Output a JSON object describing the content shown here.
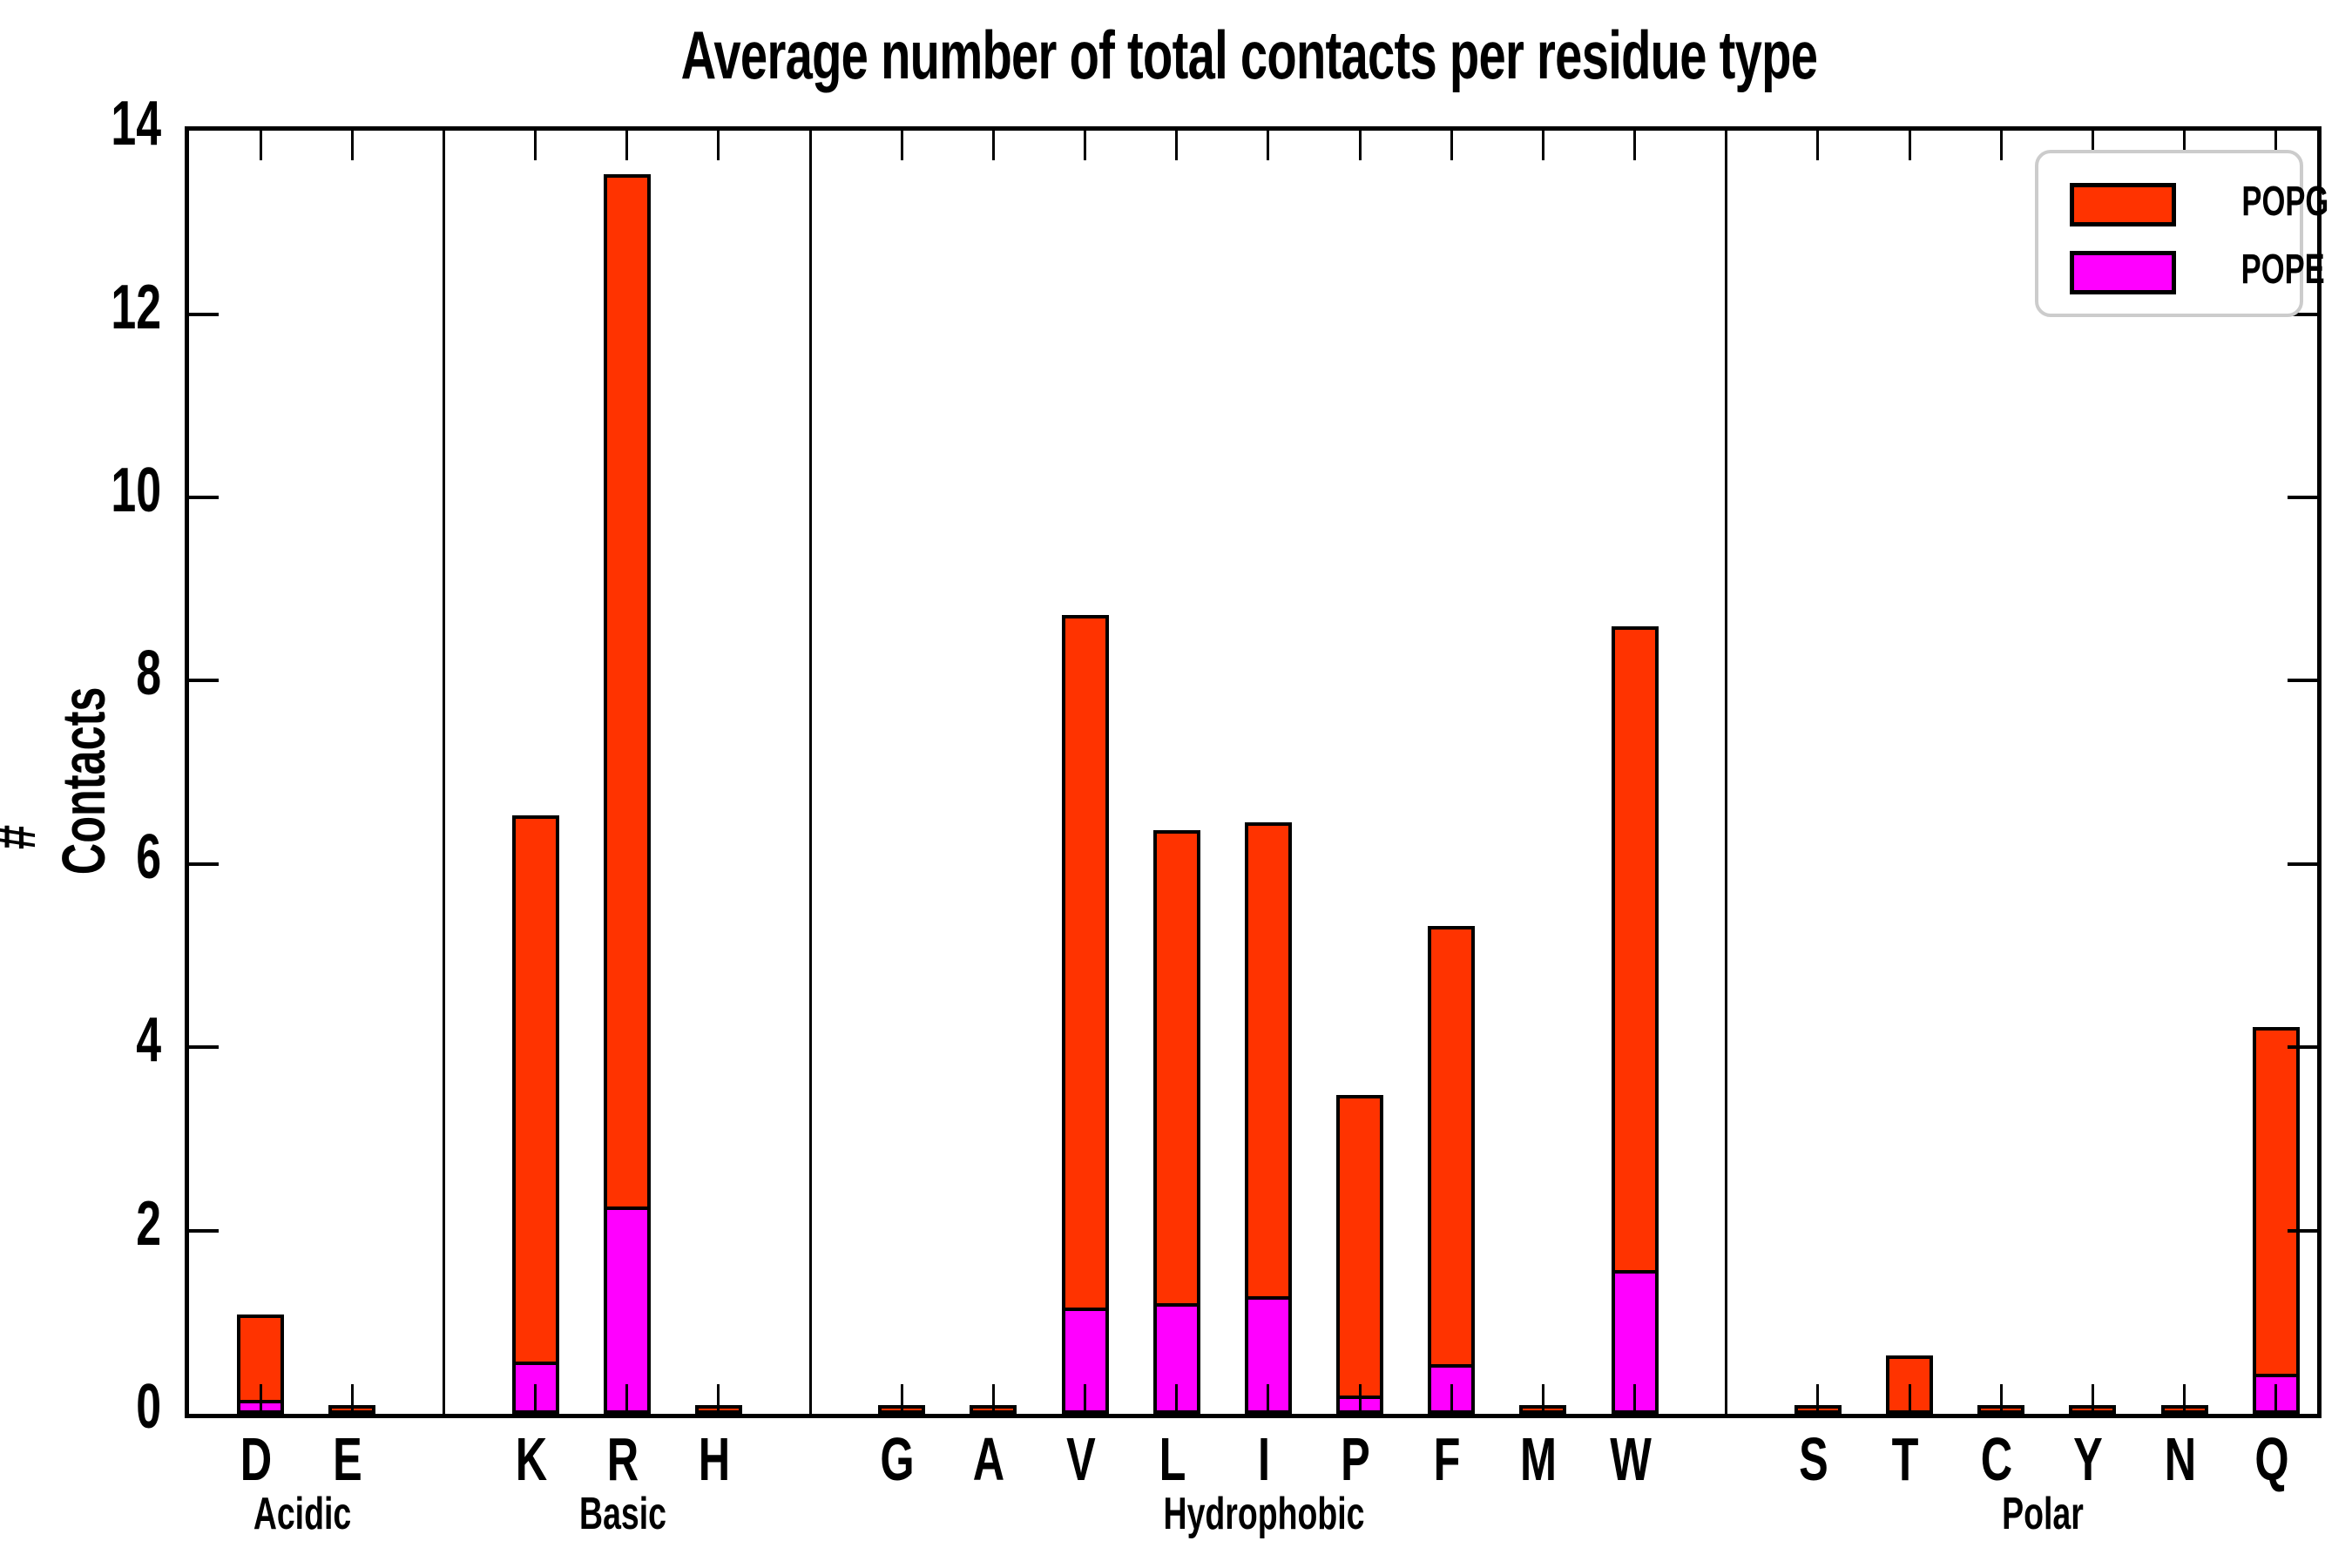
{
  "figure": {
    "title": "Average number of total contacts per residue type",
    "ylabel": "# Contacts"
  },
  "legend": {
    "items": [
      {
        "label": "POPG",
        "color": "#ff3300"
      },
      {
        "label": "POPE",
        "color": "#ff00ff"
      }
    ]
  },
  "chart_data": {
    "type": "bar",
    "stacked": true,
    "title": "Average number of total contacts per residue type",
    "xlabel": "",
    "ylabel": "# Contacts",
    "ylim": [
      0,
      14
    ],
    "yticks": [
      0,
      2,
      4,
      6,
      8,
      10,
      12,
      14
    ],
    "grid": false,
    "tick_direction": "in",
    "legend_position": "upper right",
    "categories": [
      "D",
      "E",
      "K",
      "R",
      "H",
      "G",
      "A",
      "V",
      "L",
      "I",
      "P",
      "F",
      "M",
      "W",
      "S",
      "T",
      "C",
      "Y",
      "N",
      "Q"
    ],
    "groups": [
      {
        "label": "Acidic",
        "members": [
          "D",
          "E"
        ]
      },
      {
        "label": "Basic",
        "members": [
          "K",
          "R",
          "H"
        ]
      },
      {
        "label": "Hydrophobic",
        "members": [
          "G",
          "A",
          "V",
          "L",
          "I",
          "P",
          "F",
          "M",
          "W"
        ]
      },
      {
        "label": "Polar",
        "members": [
          "S",
          "T",
          "C",
          "Y",
          "N",
          "Q"
        ]
      }
    ],
    "series": [
      {
        "name": "POPE",
        "color": "#ff00ff",
        "values": [
          0.15,
          0.0,
          0.57,
          2.26,
          0.0,
          0.0,
          0.0,
          1.16,
          1.21,
          1.28,
          0.2,
          0.54,
          0.0,
          1.57,
          0.0,
          0.0,
          0.0,
          0.0,
          0.0,
          0.44
        ]
      },
      {
        "name": "POPG",
        "color": "#ff3300",
        "values": [
          0.93,
          0.02,
          5.96,
          11.27,
          0.02,
          0.02,
          0.03,
          7.56,
          5.16,
          5.17,
          3.28,
          4.78,
          0.03,
          7.02,
          0.02,
          0.64,
          0.02,
          0.02,
          0.03,
          3.78
        ]
      }
    ],
    "totals": [
      1.08,
      0.02,
      6.53,
      13.53,
      0.02,
      0.02,
      0.03,
      8.72,
      6.37,
      6.45,
      3.48,
      5.32,
      0.03,
      8.59,
      0.02,
      0.64,
      0.02,
      0.02,
      0.03,
      4.22
    ]
  }
}
